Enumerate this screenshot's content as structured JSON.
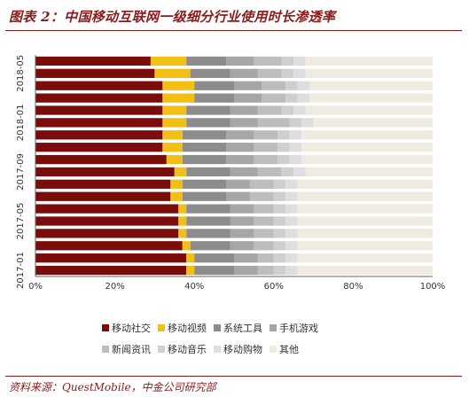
{
  "header": {
    "title": "图表 2：中国移动互联网一级细分行业使用时长渗透率"
  },
  "footer": {
    "source": "资料来源：QuestMobile，中金公司研究部"
  },
  "colors": [
    "#7a0c0c",
    "#f2c014",
    "#8c8c8c",
    "#a6a6a6",
    "#bdbdbd",
    "#cfcfcf",
    "#dedede",
    "#efebe0"
  ],
  "chart_data": {
    "type": "bar",
    "orientation": "horizontal",
    "stacked": true,
    "categories": [
      "2017-01",
      "2017-02",
      "2017-03",
      "2017-04",
      "2017-05",
      "2017-06",
      "2017-07",
      "2017-08",
      "2017-09",
      "2017-10",
      "2017-11",
      "2017-12",
      "2018-01",
      "2018-02",
      "2018-03",
      "2018-04",
      "2018-05",
      "2018-06"
    ],
    "y_tick_labels": [
      "2017-01",
      "2017-05",
      "2017-09",
      "2018-01",
      "2018-05"
    ],
    "x_tick_labels": [
      "0%",
      "20%",
      "40%",
      "60%",
      "80%",
      "100%"
    ],
    "xlim": [
      0,
      100
    ],
    "grid": false,
    "legend_position": "bottom",
    "series": [
      {
        "name": "移动社交",
        "values": [
          38,
          38,
          37,
          36,
          36,
          36,
          34,
          34,
          35,
          33,
          32,
          32,
          32,
          32,
          32,
          32,
          30,
          29
        ]
      },
      {
        "name": "移动视频",
        "values": [
          2,
          2,
          2,
          2,
          2,
          2,
          3,
          3,
          3,
          4,
          5,
          5,
          6,
          6,
          8,
          8,
          9,
          9
        ]
      },
      {
        "name": "系统工具",
        "values": [
          10,
          10,
          10,
          11,
          11,
          11,
          11,
          11,
          11,
          11,
          11,
          11,
          11,
          11,
          10,
          10,
          10,
          10
        ]
      },
      {
        "name": "手机游戏",
        "values": [
          6,
          6,
          6,
          6,
          6,
          6,
          6,
          6,
          7,
          7,
          7,
          7,
          7,
          7,
          7,
          7,
          7,
          7
        ]
      },
      {
        "name": "新闻资讯",
        "values": [
          4,
          4,
          5,
          5,
          5,
          5,
          6,
          6,
          6,
          6,
          6,
          6,
          8,
          6,
          6,
          6,
          6,
          7
        ]
      },
      {
        "name": "移动音乐",
        "values": [
          3,
          3,
          3,
          3,
          3,
          3,
          3,
          3,
          3,
          3,
          3,
          3,
          3,
          3,
          3,
          3,
          3,
          3
        ]
      },
      {
        "name": "移动购物",
        "values": [
          3,
          3,
          3,
          3,
          3,
          3,
          3,
          3,
          3,
          3,
          3,
          3,
          3,
          3,
          3,
          3,
          3,
          3
        ]
      },
      {
        "name": "其他",
        "values": [
          34,
          34,
          34,
          34,
          34,
          34,
          34,
          34,
          32,
          33,
          33,
          33,
          30,
          32,
          31,
          31,
          32,
          32
        ]
      }
    ]
  }
}
